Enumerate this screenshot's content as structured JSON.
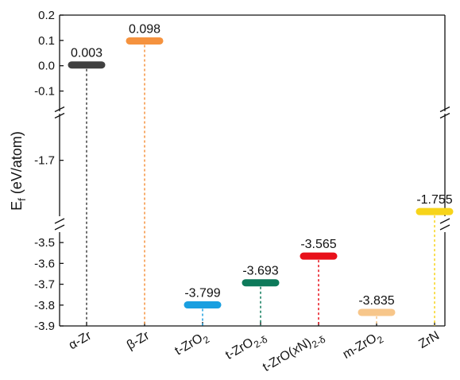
{
  "chart_data": {
    "type": "bar",
    "ylabel": "E",
    "ylabel_sub": "f",
    "ylabel_unit": " (eV/atom)",
    "y_segments": [
      {
        "range": [
          -3.9,
          -3.45
        ],
        "ticks": [
          "-3.9",
          "-3.8",
          "-3.7",
          "-3.6",
          "-3.5"
        ]
      },
      {
        "range": [
          -1.76,
          -1.65
        ],
        "ticks": [
          "-1.7"
        ]
      },
      {
        "range": [
          -0.18,
          0.2
        ],
        "ticks": [
          "-0.1",
          "0.0",
          "0.1",
          "0.2"
        ]
      }
    ],
    "categories": [
      {
        "name": "α-Zr",
        "base": "α-Zr",
        "sub": "",
        "tail": "",
        "value": 0.003,
        "label": "0.003",
        "color": "#404040"
      },
      {
        "name": "β-Zr",
        "base": "β-Zr",
        "sub": "",
        "tail": "",
        "value": 0.098,
        "label": "0.098",
        "color": "#f5923e"
      },
      {
        "name": "t-ZrO2",
        "base": "t-ZrO",
        "sub": "2",
        "tail": "",
        "value": -3.799,
        "label": "-3.799",
        "color": "#1a9fe0"
      },
      {
        "name": "t-ZrO2-δ",
        "base": "t-ZrO",
        "sub": "2-δ",
        "tail": "",
        "value": -3.693,
        "label": "-3.693",
        "color": "#0d7a5a"
      },
      {
        "name": "t-ZrO(xN)2-δ",
        "base": "t-ZrO(",
        "sub": "",
        "tail": "",
        "italic": "x",
        "after": "N)",
        "sub2": "2-δ",
        "value": -3.565,
        "label": "-3.565",
        "color": "#e8101a"
      },
      {
        "name": "m-ZrO2",
        "base": "m-ZrO",
        "sub": "2",
        "tail": "",
        "value": -3.835,
        "label": "-3.835",
        "color": "#f7c68a"
      },
      {
        "name": "ZrN",
        "base": "ZrN",
        "sub": "",
        "tail": "",
        "value": -1.755,
        "label": "-1.755",
        "color": "#f7d41a"
      }
    ]
  }
}
